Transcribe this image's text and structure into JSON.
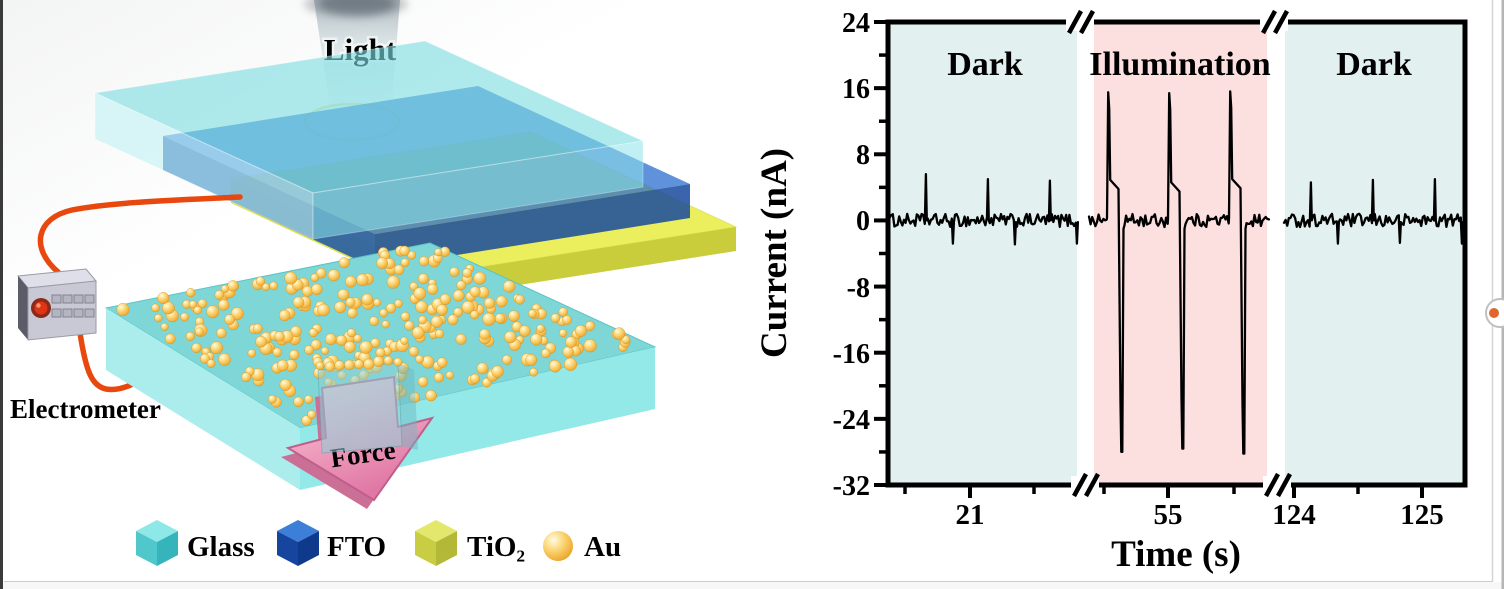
{
  "diagram": {
    "labels": {
      "light": "Light",
      "force": "Force",
      "electrometer": "Electrometer"
    },
    "legend": [
      {
        "label": "Glass",
        "shape": "cube",
        "color": "#7fd8d8",
        "faces": {
          "top": "#8fe8e8",
          "left": "#4fc7cb",
          "right": "#36b4bc"
        }
      },
      {
        "label": "FTO",
        "shape": "cube",
        "color": "#1b4fa4",
        "faces": {
          "top": "#3d7fd8",
          "left": "#16459f",
          "right": "#0f3a8c"
        }
      },
      {
        "label": "TiO₂",
        "shape": "cube",
        "color": "#d8dc4a",
        "faces": {
          "top": "#e3e76b",
          "left": "#c9cd44",
          "right": "#b4b838"
        }
      },
      {
        "label": "Au",
        "shape": "sphere",
        "color": "#f7c64a",
        "faces": {
          "top": "#f7c64a",
          "left": "#f7c64a",
          "right": "#f7c64a"
        }
      }
    ],
    "colors": {
      "glass": "#7fd8d8",
      "fto": "#2268cf",
      "tio2": "#ecef5d",
      "au": "#f7c64a",
      "wire": "#e8480e",
      "force_arrow": "#e88fb2",
      "electrometer_body": "#c9c9d6",
      "light_beam": "#8ba2ad"
    }
  },
  "chart_data": {
    "type": "line",
    "title": "",
    "xlabel": "Time (s)",
    "ylabel": "Current (nA)",
    "ylim": [
      -32,
      24
    ],
    "yticks": [
      24,
      16,
      8,
      0,
      -8,
      -16,
      -24,
      -32
    ],
    "xticks": [
      "21",
      "55",
      "124",
      "125"
    ],
    "x_axis_breaks": 2,
    "grid": false,
    "legend_position": "none",
    "line_color": "#000000",
    "baseline_nA": 0,
    "noise_amplitude_nA": 0.8,
    "regions": [
      {
        "label": "Dark",
        "bg": "#e2f0ef",
        "xtick_labels": [
          "21"
        ]
      },
      {
        "label": "Illumination",
        "bg": "#fcdfdf",
        "xtick_labels": [
          "55"
        ]
      },
      {
        "label": "Dark",
        "bg": "#e2f0ef",
        "xtick_labels": [
          "124",
          "125"
        ]
      }
    ],
    "segments": [
      {
        "region": "Dark",
        "events": [
          {
            "type": "pulse",
            "peak_nA": 5.6,
            "dip_nA": -2.8
          },
          {
            "type": "pulse",
            "peak_nA": 5.0,
            "dip_nA": -2.9
          },
          {
            "type": "pulse",
            "peak_nA": 4.8,
            "dip_nA": -2.8
          }
        ]
      },
      {
        "region": "Illumination",
        "events": [
          {
            "type": "pulse",
            "peak_nA": 15.5,
            "shoulder_nA": 4.9,
            "dip_nA": -28.0
          },
          {
            "type": "pulse",
            "peak_nA": 15.4,
            "shoulder_nA": 4.6,
            "dip_nA": -27.6
          },
          {
            "type": "pulse",
            "peak_nA": 15.6,
            "shoulder_nA": 5.0,
            "dip_nA": -28.2
          }
        ]
      },
      {
        "region": "Dark",
        "events": [
          {
            "type": "pulse",
            "peak_nA": 4.6,
            "dip_nA": -2.8
          },
          {
            "type": "pulse",
            "peak_nA": 4.9,
            "dip_nA": -2.7
          },
          {
            "type": "pulse",
            "peak_nA": 5.0,
            "dip_nA": -2.8
          }
        ]
      }
    ]
  },
  "chrome": {
    "edge_widget_accent": "#e0662e"
  }
}
